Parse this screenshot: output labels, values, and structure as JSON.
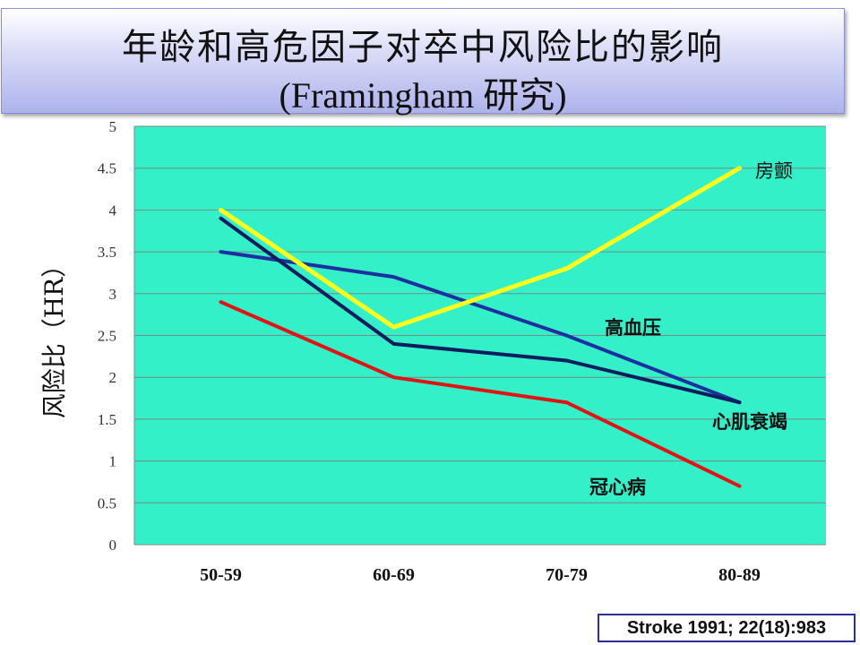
{
  "slide": {
    "title_line1": "年龄和高危因子对卒中风险比的影响",
    "title_line2": "(Framingham 研究)",
    "citation": "Stroke 1991; 22(18):983"
  },
  "colors": {
    "plot_background": "#33f0c8",
    "atrial_fibrillation": "#ffff1e",
    "hypertension": "#1e30a0",
    "heart_failure": "#0f1c5e",
    "coronary_heart_disease": "#e01414"
  },
  "chart_data": {
    "type": "line",
    "title": "",
    "xlabel": "",
    "ylabel": "风险比（HR）",
    "categories": [
      "50-59",
      "60-69",
      "70-79",
      "80-89"
    ],
    "ylim": [
      0,
      5
    ],
    "yticks": [
      "0",
      "0.5",
      "1",
      "1.5",
      "2",
      "2.5",
      "3",
      "3.5",
      "4",
      "4.5",
      "5"
    ],
    "grid": true,
    "series": [
      {
        "name": "房颤",
        "color": "#ffff1e",
        "values": [
          4.0,
          2.6,
          3.3,
          4.5
        ]
      },
      {
        "name": "高血压",
        "color": "#1e30a0",
        "values": [
          3.5,
          3.2,
          2.5,
          1.7
        ]
      },
      {
        "name": "心肌衰竭",
        "color": "#0f1c5e",
        "values": [
          3.9,
          2.4,
          2.2,
          1.7
        ]
      },
      {
        "name": "冠心病",
        "color": "#e01414",
        "values": [
          2.9,
          2.0,
          1.7,
          0.7
        ]
      }
    ]
  }
}
